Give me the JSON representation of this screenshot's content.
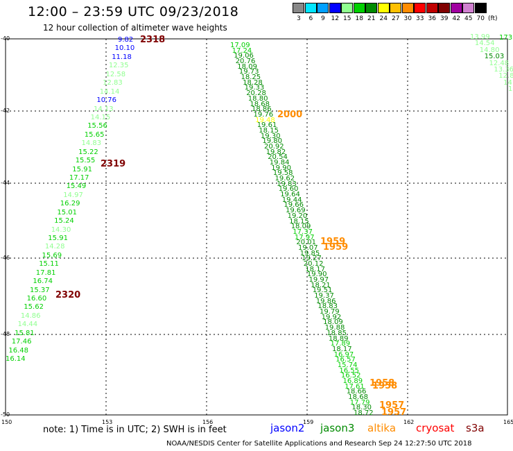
{
  "title": "12:00 – 23:59 UTC 09/23/2018",
  "subtitle": "12 hour collection of altimeter wave heights",
  "legend": {
    "unit": "(ft)",
    "bins": [
      {
        "label": "3",
        "color": "#888888"
      },
      {
        "label": "6",
        "color": "#00e5ff"
      },
      {
        "label": "9",
        "color": "#00a0ff"
      },
      {
        "label": "12",
        "color": "#0000ff"
      },
      {
        "label": "15",
        "color": "#90ff90"
      },
      {
        "label": "18",
        "color": "#00d000"
      },
      {
        "label": "21",
        "color": "#008a00"
      },
      {
        "label": "24",
        "color": "#ffff00"
      },
      {
        "label": "27",
        "color": "#ffc000"
      },
      {
        "label": "30",
        "color": "#ff8c00"
      },
      {
        "label": "33",
        "color": "#ff0000"
      },
      {
        "label": "36",
        "color": "#c00000"
      },
      {
        "label": "39",
        "color": "#800000"
      },
      {
        "label": "42",
        "color": "#a000a0"
      },
      {
        "label": "45",
        "color": "#d080d0"
      },
      {
        "label": "70",
        "color": "#000000"
      }
    ]
  },
  "axes": {
    "lon_labels": [
      "150",
      "153",
      "156",
      "159",
      "162",
      "165"
    ],
    "lat_labels": [
      "-40",
      "-42",
      "-44",
      "-46",
      "-48",
      "-50"
    ]
  },
  "tracks": [
    {
      "name": "west-pass",
      "points": [
        {
          "t": "9.82",
          "c": "#0000ff"
        },
        {
          "t": "10.10",
          "c": "#0000ff"
        },
        {
          "t": "11.18",
          "c": "#0000ff"
        },
        {
          "t": "12.35",
          "c": "#90ff90"
        },
        {
          "t": "12.58",
          "c": "#90ff90"
        },
        {
          "t": "12.83",
          "c": "#90ff90"
        },
        {
          "t": "14.14",
          "c": "#90ff90"
        },
        {
          "t": "10.76",
          "c": "#0000ff"
        },
        {
          "t": "14.13",
          "c": "#90ff90"
        },
        {
          "t": "14.15",
          "c": "#90ff90"
        },
        {
          "t": "15.56",
          "c": "#00d000"
        },
        {
          "t": "15.65",
          "c": "#00d000"
        },
        {
          "t": "14.83",
          "c": "#90ff90"
        },
        {
          "t": "15.22",
          "c": "#00d000"
        },
        {
          "t": "15.55",
          "c": "#00d000"
        },
        {
          "t": "15.91",
          "c": "#00d000"
        },
        {
          "t": "17.17",
          "c": "#00d000"
        },
        {
          "t": "15.49",
          "c": "#00d000"
        },
        {
          "t": "14.97",
          "c": "#90ff90"
        },
        {
          "t": "16.29",
          "c": "#00d000"
        },
        {
          "t": "15.01",
          "c": "#00d000"
        },
        {
          "t": "15.24",
          "c": "#00d000"
        },
        {
          "t": "14.30",
          "c": "#90ff90"
        },
        {
          "t": "15.91",
          "c": "#00d000"
        },
        {
          "t": "14.28",
          "c": "#90ff90"
        },
        {
          "t": "15.69",
          "c": "#00d000"
        },
        {
          "t": "15.11",
          "c": "#00d000"
        },
        {
          "t": "17.81",
          "c": "#00d000"
        },
        {
          "t": "16.74",
          "c": "#00d000"
        },
        {
          "t": "15.37",
          "c": "#00d000"
        },
        {
          "t": "16.60",
          "c": "#00d000"
        },
        {
          "t": "15.62",
          "c": "#00d000"
        },
        {
          "t": "14.86",
          "c": "#90ff90"
        },
        {
          "t": "14.44",
          "c": "#90ff90"
        },
        {
          "t": "15.81",
          "c": "#00d000"
        },
        {
          "t": "17.46",
          "c": "#00d000"
        },
        {
          "t": "16.48",
          "c": "#00d000"
        },
        {
          "t": "16.14",
          "c": "#00d000"
        }
      ]
    },
    {
      "name": "central-pass",
      "points": [
        {
          "t": "17.09",
          "c": "#00d000"
        },
        {
          "t": "17.24",
          "c": "#00d000"
        },
        {
          "t": "19.06",
          "c": "#008a00"
        },
        {
          "t": "20.76",
          "c": "#008a00"
        },
        {
          "t": "18.09",
          "c": "#008a00"
        },
        {
          "t": "19.73",
          "c": "#008a00"
        },
        {
          "t": "18.25",
          "c": "#008a00"
        },
        {
          "t": "18.28",
          "c": "#008a00"
        },
        {
          "t": "19.33",
          "c": "#008a00"
        },
        {
          "t": "20.28",
          "c": "#008a00"
        },
        {
          "t": "18.80",
          "c": "#008a00"
        },
        {
          "t": "18.68",
          "c": "#008a00"
        },
        {
          "t": "18.86",
          "c": "#008a00"
        },
        {
          "t": "19.76",
          "c": "#008a00"
        },
        {
          "t": "19.48",
          "c": "#ffff00"
        },
        {
          "t": "19.61",
          "c": "#008a00"
        },
        {
          "t": "18.15",
          "c": "#008a00"
        },
        {
          "t": "19.30",
          "c": "#008a00"
        },
        {
          "t": "19.80",
          "c": "#008a00"
        },
        {
          "t": "20.92",
          "c": "#008a00"
        },
        {
          "t": "19.82",
          "c": "#008a00"
        },
        {
          "t": "20.54",
          "c": "#008a00"
        },
        {
          "t": "19.84",
          "c": "#008a00"
        },
        {
          "t": "19.90",
          "c": "#008a00"
        },
        {
          "t": "19.58",
          "c": "#008a00"
        },
        {
          "t": "19.62",
          "c": "#008a00"
        },
        {
          "t": "19.83",
          "c": "#008a00"
        },
        {
          "t": "19.60",
          "c": "#008a00"
        },
        {
          "t": "19.64",
          "c": "#008a00"
        },
        {
          "t": "19.44",
          "c": "#008a00"
        },
        {
          "t": "19.66",
          "c": "#008a00"
        },
        {
          "t": "19.69",
          "c": "#008a00"
        },
        {
          "t": "19.20",
          "c": "#008a00"
        },
        {
          "t": "18.15",
          "c": "#008a00"
        },
        {
          "t": "18.09",
          "c": "#008a00"
        },
        {
          "t": "17.37",
          "c": "#00d000"
        },
        {
          "t": "17.97",
          "c": "#00d000"
        },
        {
          "t": "20.01",
          "c": "#008a00"
        },
        {
          "t": "19.07",
          "c": "#008a00"
        },
        {
          "t": "19.85",
          "c": "#008a00"
        },
        {
          "t": "19.27",
          "c": "#008a00"
        },
        {
          "t": "20.12",
          "c": "#008a00"
        },
        {
          "t": "18.17",
          "c": "#008a00"
        },
        {
          "t": "19.90",
          "c": "#008a00"
        },
        {
          "t": "19.97",
          "c": "#008a00"
        },
        {
          "t": "18.21",
          "c": "#008a00"
        },
        {
          "t": "19.51",
          "c": "#008a00"
        },
        {
          "t": "19.37",
          "c": "#008a00"
        },
        {
          "t": "19.86",
          "c": "#008a00"
        },
        {
          "t": "18.83",
          "c": "#008a00"
        },
        {
          "t": "19.79",
          "c": "#008a00"
        },
        {
          "t": "19.92",
          "c": "#008a00"
        },
        {
          "t": "18.09",
          "c": "#008a00"
        },
        {
          "t": "19.88",
          "c": "#008a00"
        },
        {
          "t": "18.85",
          "c": "#008a00"
        },
        {
          "t": "18.89",
          "c": "#008a00"
        },
        {
          "t": "17.89",
          "c": "#00d000"
        },
        {
          "t": "18.17",
          "c": "#008a00"
        },
        {
          "t": "16.97",
          "c": "#00d000"
        },
        {
          "t": "16.57",
          "c": "#00d000"
        },
        {
          "t": "15.74",
          "c": "#00d000"
        },
        {
          "t": "16.55",
          "c": "#00d000"
        },
        {
          "t": "16.52",
          "c": "#00d000"
        },
        {
          "t": "16.89",
          "c": "#00d000"
        },
        {
          "t": "17.61",
          "c": "#00d000"
        },
        {
          "t": "18.66",
          "c": "#008a00"
        },
        {
          "t": "18.68",
          "c": "#008a00"
        },
        {
          "t": "17.79",
          "c": "#00d000"
        },
        {
          "t": "18.30",
          "c": "#008a00"
        },
        {
          "t": "18.72",
          "c": "#008a00"
        }
      ]
    },
    {
      "name": "east-pass",
      "points": [
        {
          "t": "13.99",
          "c": "#90ff90"
        },
        {
          "t": "14.54",
          "c": "#90ff90"
        },
        {
          "t": "14.80",
          "c": "#90ff90"
        },
        {
          "t": "15.03",
          "c": "#008a00"
        },
        {
          "t": "12.48",
          "c": "#90ff90"
        },
        {
          "t": "13.36",
          "c": "#90ff90"
        },
        {
          "t": "12.8",
          "c": "#90ff90"
        },
        {
          "t": "14",
          "c": "#90ff90"
        },
        {
          "t": "13",
          "c": "#90ff90"
        }
      ]
    },
    {
      "name": "east-pass-edge",
      "points": [
        {
          "t": "173",
          "c": "#00d000"
        }
      ]
    }
  ],
  "time_labels": [
    {
      "t": "2318",
      "c": "#800000"
    },
    {
      "t": "2319",
      "c": "#800000"
    },
    {
      "t": "2320",
      "c": "#800000"
    },
    {
      "t": "2000",
      "c": "#ff8c00"
    },
    {
      "t": "1959",
      "c": "#ff8c00"
    },
    {
      "t": "1959",
      "c": "#ff8c00"
    },
    {
      "t": "1958",
      "c": "#ff8c00"
    },
    {
      "t": "1958",
      "c": "#ff8c00"
    },
    {
      "t": "1957",
      "c": "#ff8c00"
    },
    {
      "t": "1957",
      "c": "#ff8c00"
    }
  ],
  "note": "note:  1) Time is in UTC;  2) SWH is in feet",
  "satellites": [
    {
      "name": "jason2",
      "color": "#0000ff"
    },
    {
      "name": "jason3",
      "color": "#008a00"
    },
    {
      "name": "altika",
      "color": "#ff8c00"
    },
    {
      "name": "cryosat",
      "color": "#ff0000"
    },
    {
      "name": "s3a",
      "color": "#800000"
    }
  ],
  "credit": "NOAA/NESDIS Center for Satellite Applications and Research     Sep 24 12:27:50 UTC 2018"
}
